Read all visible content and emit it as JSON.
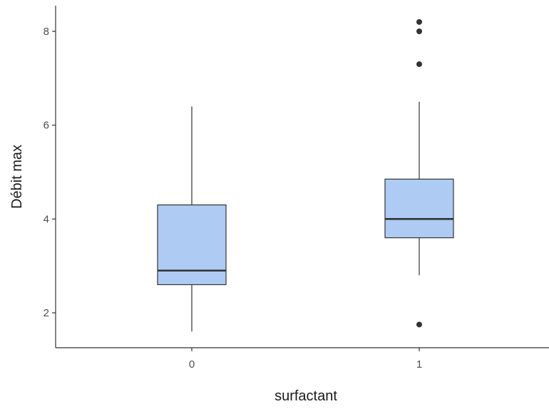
{
  "chart_data": {
    "type": "box",
    "title": "",
    "xlabel": "surfactant",
    "ylabel": "Débit max",
    "categories": [
      "0",
      "1"
    ],
    "ylim": [
      1.3,
      8.5
    ],
    "yticks": [
      2,
      4,
      6,
      8
    ],
    "grid": false,
    "fill_color": "#aecbf3",
    "stroke_color": "#333333",
    "boxes": [
      {
        "category": "0",
        "whisker_low": 1.6,
        "q1": 2.6,
        "median": 2.9,
        "q3": 4.3,
        "whisker_high": 6.4,
        "outliers": []
      },
      {
        "category": "1",
        "whisker_low": 2.8,
        "q1": 3.6,
        "median": 4.0,
        "q3": 4.85,
        "whisker_high": 6.5,
        "outliers": [
          1.75,
          7.3,
          8.0,
          8.2
        ]
      }
    ]
  }
}
